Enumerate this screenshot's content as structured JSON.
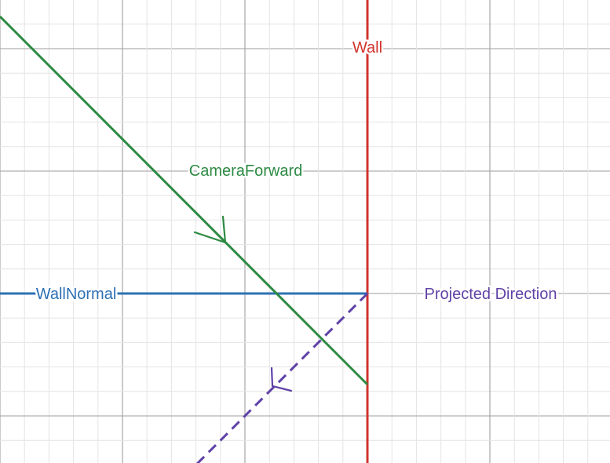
{
  "labels": {
    "wall": "Wall",
    "camera_forward": "CameraForward",
    "wall_normal": "WallNormal",
    "projected_direction": "Projected Direction"
  },
  "colors": {
    "wall": "#d0342c",
    "camera_forward": "#2d8a43",
    "wall_normal": "#2d70b3",
    "projected_direction": "#6042a6",
    "grid_minor": "#e4e4e4",
    "grid_major": "#9e9e9e"
  }
}
